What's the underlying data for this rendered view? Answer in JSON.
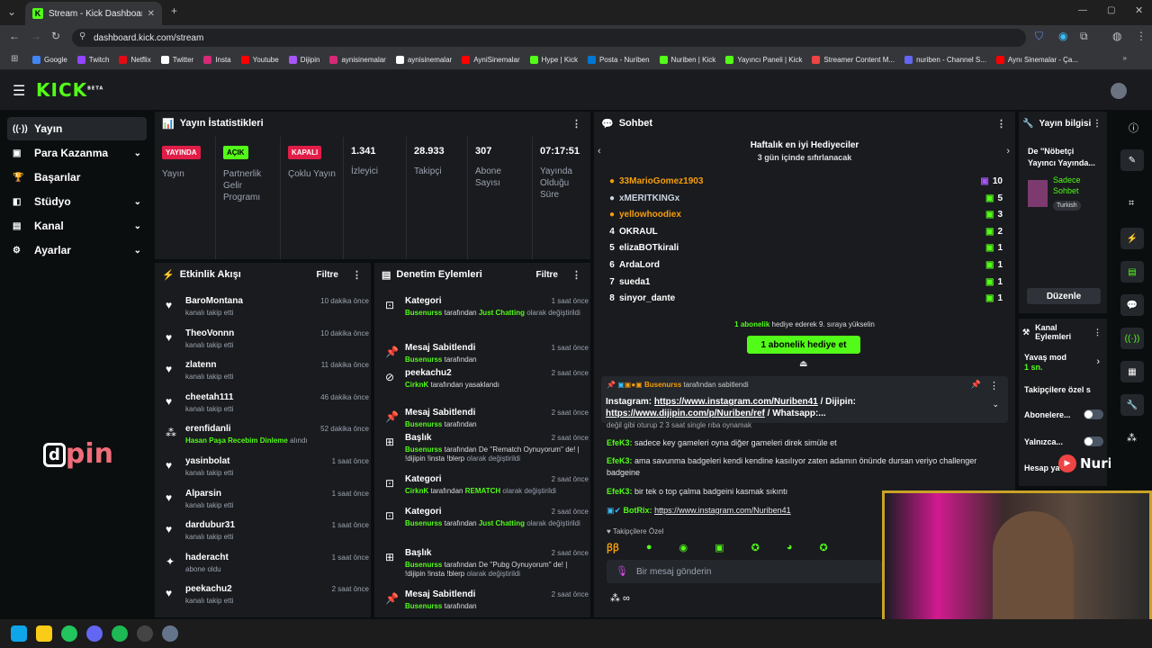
{
  "browser": {
    "tab_title": "Stream - Kick Dashboard",
    "url": "dashboard.kick.com/stream",
    "bookmarks": [
      {
        "label": "Google",
        "color": "#4285f4"
      },
      {
        "label": "Twitch",
        "color": "#9146ff"
      },
      {
        "label": "Netflix",
        "color": "#e50914"
      },
      {
        "label": "Twitter",
        "color": "#ffffff"
      },
      {
        "label": "Insta",
        "color": "#d62976"
      },
      {
        "label": "Youtube",
        "color": "#ff0000"
      },
      {
        "label": "Dijipin",
        "color": "#a855f7"
      },
      {
        "label": "aynisinemalar",
        "color": "#d62976"
      },
      {
        "label": "aynisinemalar",
        "color": "#ffffff"
      },
      {
        "label": "AyniSinemalar",
        "color": "#ff0000"
      },
      {
        "label": "Hype | Kick",
        "color": "#53fc18"
      },
      {
        "label": "Posta - Nuriben",
        "color": "#0078d4"
      },
      {
        "label": "Nuriben | Kick",
        "color": "#53fc18"
      },
      {
        "label": "Yayıncı Paneli | Kick",
        "color": "#53fc18"
      },
      {
        "label": "Streamer Content M...",
        "color": "#ef4444"
      },
      {
        "label": "nuriben - Channel S...",
        "color": "#6366f1"
      },
      {
        "label": "Aynı Sinemalar - Ça...",
        "color": "#ff0000"
      }
    ]
  },
  "kick": {
    "logo": "KICK",
    "logo_sup": "BETA"
  },
  "sidebar": {
    "items": [
      {
        "icon": "((·))",
        "label": "Yayın",
        "chev": ""
      },
      {
        "icon": "▣",
        "label": "Para Kazanma",
        "chev": "⌄"
      },
      {
        "icon": "🏆",
        "label": "Başarılar",
        "chev": ""
      },
      {
        "icon": "◧",
        "label": "Stüdyo",
        "chev": "⌄"
      },
      {
        "icon": "▤",
        "label": "Kanal",
        "chev": "⌄"
      },
      {
        "icon": "⚙",
        "label": "Ayarlar",
        "chev": "⌄"
      }
    ],
    "watermark": "pin"
  },
  "stats": {
    "title": "Yayın İstatistikleri",
    "cols": [
      {
        "badge": "YAYINDA",
        "badge_bg": "#e11d48",
        "badge_fg": "#ffffff",
        "label": "Yayın"
      },
      {
        "badge": "AÇIK",
        "badge_bg": "#53fc18",
        "badge_fg": "#000000",
        "label": "Partnerlik Gelir Programı"
      },
      {
        "badge": "KAPALI",
        "badge_bg": "#e11d48",
        "badge_fg": "#ffffff",
        "label": "Çoklu Yayın"
      },
      {
        "num": "1.341",
        "label": "İzleyici"
      },
      {
        "num": "28.933",
        "label": "Takipçi"
      },
      {
        "num": "307",
        "label": "Abone Sayısı"
      },
      {
        "num": "07:17:51",
        "label": "Yayında Olduğu Süre"
      }
    ]
  },
  "activity": {
    "title": "Etkinlik Akışı",
    "filter": "Filtre",
    "rows": [
      {
        "icon": "♥",
        "name": "BaroMontana",
        "sub": "kanalı takip etti",
        "time": "10 dakika önce"
      },
      {
        "icon": "♥",
        "name": "TheoVonnn",
        "sub": "kanalı takip etti",
        "time": "10 dakika önce"
      },
      {
        "icon": "♥",
        "name": "zlatenn",
        "sub": "kanalı takip etti",
        "time": "11 dakika önce"
      },
      {
        "icon": "♥",
        "name": "cheetah111",
        "sub": "kanalı takip etti",
        "time": "46 dakika önce"
      },
      {
        "icon": "⁂",
        "name": "erenfidanli",
        "sub_green": "Hasan Paşa Recebim Dinleme",
        "sub": "alındı",
        "time": "52 dakika önce"
      },
      {
        "icon": "♥",
        "name": "yasinbolat",
        "sub": "kanalı takip etti",
        "time": "1 saat önce"
      },
      {
        "icon": "♥",
        "name": "Alparsin",
        "sub": "kanalı takip etti",
        "time": "1 saat önce"
      },
      {
        "icon": "♥",
        "name": "dardubur31",
        "sub": "kanalı takip etti",
        "time": "1 saat önce"
      },
      {
        "icon": "✦",
        "name": "haderacht",
        "sub": "abone oldu",
        "time": "1 saat önce"
      },
      {
        "icon": "♥",
        "name": "peekachu2",
        "sub": "kanalı takip etti",
        "time": "2 saat önce"
      }
    ]
  },
  "moderation": {
    "title": "Denetim Eylemleri",
    "filter": "Filtre",
    "rows": [
      {
        "icon": "⊡",
        "name": "Kategori",
        "actor": "Busenurss",
        "mid": "tarafından",
        "target": "Just Chatting",
        "end": "olarak değiştirildi",
        "time": "1 saat önce"
      },
      {
        "icon": "📌",
        "name": "Mesaj Sabitlendi",
        "actor": "Busenurss",
        "mid": "tarafından",
        "target": "",
        "end": "",
        "time": "1 saat önce"
      },
      {
        "icon": "⊘",
        "name": "peekachu2",
        "actor": "CirknK",
        "mid": "tarafından yasaklandı",
        "target": "",
        "end": "",
        "time": "2 saat önce"
      },
      {
        "icon": "📌",
        "name": "Mesaj Sabitlendi",
        "actor": "Busenurss",
        "mid": "tarafından",
        "target": "",
        "end": "",
        "time": "2 saat önce"
      },
      {
        "icon": "⊞",
        "name": "Başlık",
        "actor": "Busenurss",
        "mid": "tarafından De ''Rematch Oynuyorum'' de! | !dijipin !insta !blerp",
        "target": "",
        "end": "olarak değiştirildi",
        "time": "2 saat önce"
      },
      {
        "icon": "⊡",
        "name": "Kategori",
        "actor": "CirknK",
        "mid": "tarafından",
        "target": "REMATCH",
        "end": "olarak değiştirildi",
        "time": "2 saat önce"
      },
      {
        "icon": "⊡",
        "name": "Kategori",
        "actor": "Busenurss",
        "mid": "tarafından",
        "target": "Just Chatting",
        "end": "olarak değiştirildi",
        "time": "2 saat önce"
      },
      {
        "icon": "⊞",
        "name": "Başlık",
        "actor": "Busenurss",
        "mid": "tarafından De ''Pubg Oynuyorum'' de! | !dijipin !insta !blerp",
        "target": "",
        "end": "olarak değiştirildi",
        "time": "2 saat önce"
      },
      {
        "icon": "📌",
        "name": "Mesaj Sabitlendi",
        "actor": "Busenurss",
        "mid": "tarafından",
        "target": "",
        "end": "",
        "time": "2 saat önce"
      }
    ]
  },
  "chat": {
    "title": "Sohbet",
    "lb_title": "Haftalık en iyi Hediyeciler",
    "lb_sub": "3 gün içinde sıfırlanacak",
    "leaders": [
      {
        "rank": "●",
        "name": "33MarioGomez1903",
        "count": "10",
        "color": "#f59e0b"
      },
      {
        "rank": "●",
        "name": "xMERITKINGx",
        "count": "5",
        "color": "#cbd5e1"
      },
      {
        "rank": "●",
        "name": "yellowhoodiex",
        "count": "3",
        "color": "#f59e0b"
      },
      {
        "rank": "4",
        "name": "OKRAUL",
        "count": "2",
        "color": "#ffffff"
      },
      {
        "rank": "5",
        "name": "elizaBOTkirali",
        "count": "1",
        "color": "#ffffff"
      },
      {
        "rank": "6",
        "name": "ArdaLord",
        "count": "1",
        "color": "#ffffff"
      },
      {
        "rank": "7",
        "name": "sueda1",
        "count": "1",
        "color": "#ffffff"
      },
      {
        "rank": "8",
        "name": "sinyor_dante",
        "count": "1",
        "color": "#ffffff"
      }
    ],
    "gift_note_green": "1 abonelik",
    "gift_note": "hediye ederek 9. sıraya yükselin",
    "gift_button": "1 abonelik hediye et",
    "pinned_by": "Busenurss",
    "pinned_by_suffix": "tarafından sabitlendi",
    "pinned_text_1": "Instagram:",
    "pinned_link_1": "https://www.instagram.com/Nuriben41",
    "pinned_text_2": "/ Dijipin:",
    "pinned_link_2": "https://www.dijipin.com/p/Nuriben/ref",
    "pinned_text_3": "/ Whatsapp:...",
    "partial": "değil gibi oturup 2 3 saat single rıba oynamak",
    "messages": [
      {
        "user": "EfeK3:",
        "text": "sadece key gameleri oyna diğer gameleri direk simüle et"
      },
      {
        "user": "EfeK3:",
        "text": "ama savunma badgeleri kendi kendine kasılıyor zaten adamın önünde dursan veriyo challenger badgeine"
      },
      {
        "user": "EfeK3:",
        "text": "bir tek o top çalma badgeini kasmak sıkıntı"
      },
      {
        "user": "BotRix:",
        "text": "https://www.instagram.com/Nuriben41"
      }
    ],
    "followers_only": "Takipçilere Özel",
    "input_placeholder": "Bir mesaj gönderin"
  },
  "stream_info": {
    "title": "Yayın bilgisi",
    "stream_title": "De ''Nöbetçi Yayıncı Yayında...",
    "chat_mode": "Sadece Sohbet",
    "language": "Turkish",
    "edit": "Düzenle"
  },
  "channel_actions": {
    "title": "Kanal Eylemleri",
    "slow_mode": "Yavaş mod",
    "slow_val": "1 sn.",
    "followers": "Takipçilere özel s",
    "subs": "Abonelere...",
    "only": "Yalnızca...",
    "account": "Hesap ya",
    "brand": "Nuriben"
  }
}
